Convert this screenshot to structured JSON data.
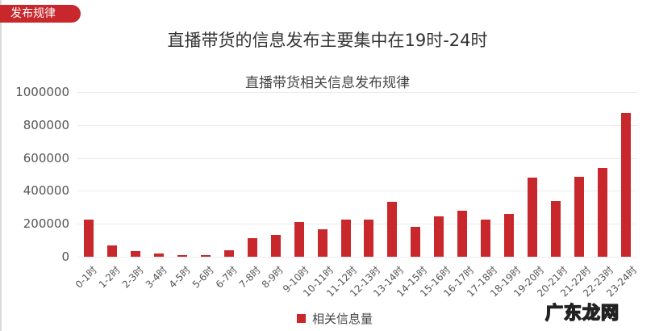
{
  "tag": {
    "label": "发布规律"
  },
  "headline": "直播带货的信息发布主要集中在19时-24时",
  "watermark": "广东龙网",
  "chart_data": {
    "type": "bar",
    "title": "直播带货相关信息发布规律",
    "xlabel": "",
    "ylabel": "",
    "ylim": [
      0,
      1000000
    ],
    "yticks": [
      0,
      200000,
      400000,
      600000,
      800000,
      1000000
    ],
    "grid": true,
    "legend_position": "bottom",
    "bar_color": "#c8282c",
    "categories": [
      "0-1时",
      "1-2时",
      "2-3时",
      "3-4时",
      "4-5时",
      "5-6时",
      "6-7时",
      "7-8时",
      "8-9时",
      "9-10时",
      "10-11时",
      "11-12时",
      "12-13时",
      "13-14时",
      "14-15时",
      "15-16时",
      "16-17时",
      "17-18时",
      "18-19时",
      "19-20时",
      "20-21时",
      "21-22时",
      "22-23时",
      "23-24时"
    ],
    "series": [
      {
        "name": "相关信息量",
        "values": [
          225000,
          70000,
          35000,
          20000,
          10000,
          10000,
          40000,
          112000,
          133000,
          212000,
          168000,
          228000,
          228000,
          333000,
          183000,
          247000,
          280000,
          225000,
          262000,
          480000,
          338000,
          485000,
          538000,
          875000
        ]
      }
    ]
  }
}
